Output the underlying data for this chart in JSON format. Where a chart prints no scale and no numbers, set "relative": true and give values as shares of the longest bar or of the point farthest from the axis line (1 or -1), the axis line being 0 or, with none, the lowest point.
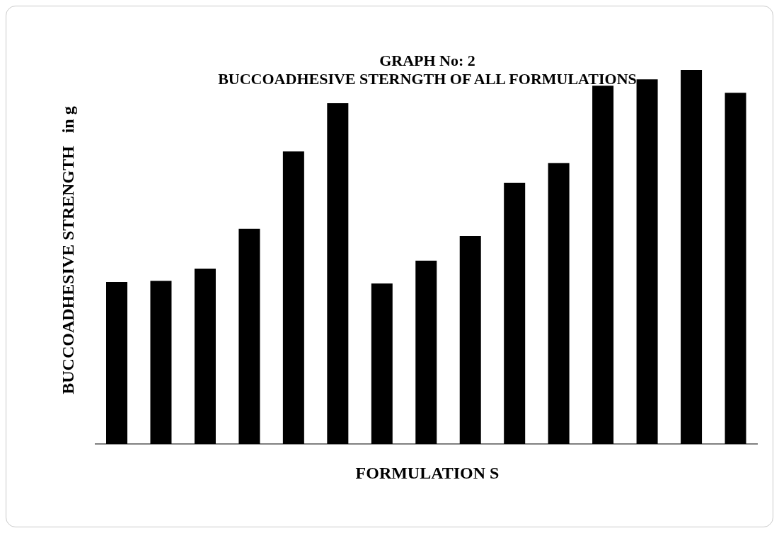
{
  "chart_data": {
    "type": "bar",
    "title": "GRAPH No: 2",
    "subtitle": "BUCCOADHESIVE STERNGTH OF ALL FORMULATIONS",
    "xlabel": "FORMULATION S",
    "ylabel": "BUCCOADHESIVE STRENGTH   in g",
    "relative": true,
    "categories": [
      null,
      null,
      null,
      null,
      null,
      null,
      null,
      null,
      null,
      null,
      null,
      null,
      null,
      null,
      null
    ],
    "values": [
      0.433,
      0.436,
      0.469,
      0.575,
      0.782,
      0.911,
      0.429,
      0.49,
      0.556,
      0.698,
      0.751,
      0.958,
      0.975,
      1,
      0.939
    ],
    "color": "#000000"
  }
}
